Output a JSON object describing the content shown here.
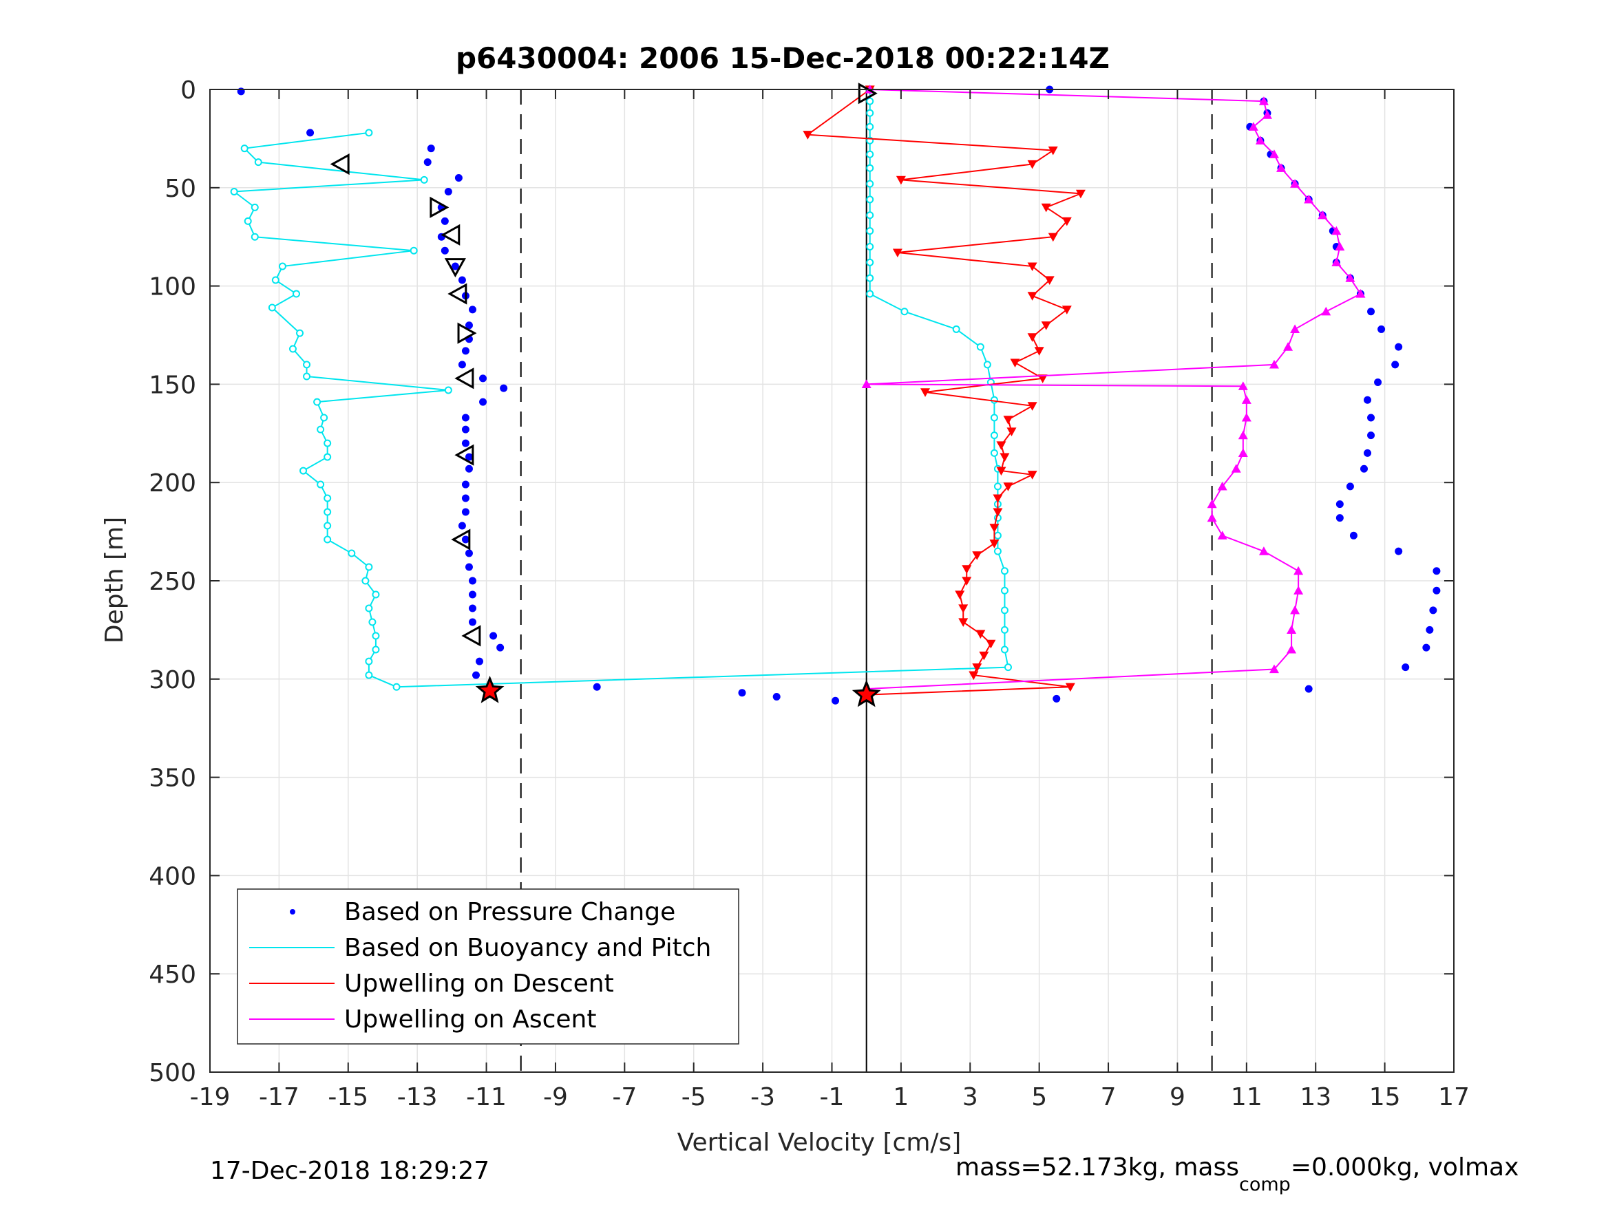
{
  "chart_data": {
    "type": "scatter",
    "title": "p6430004:  2006 15-Dec-2018 00:22:14Z",
    "xlabel": "Vertical Velocity [cm/s]",
    "ylabel": "Depth [m]",
    "xlim": [
      -19,
      17
    ],
    "ylim": [
      0,
      500
    ],
    "y_reversed": true,
    "grid": true,
    "x_ticks": [
      -19,
      -17,
      -15,
      -13,
      -11,
      -9,
      -7,
      -5,
      -3,
      -1,
      1,
      3,
      5,
      7,
      9,
      11,
      13,
      15,
      17
    ],
    "y_ticks": [
      0,
      50,
      100,
      150,
      200,
      250,
      300,
      350,
      400,
      450,
      500
    ],
    "reference_lines": [
      {
        "x": -10,
        "style": "dashed"
      },
      {
        "x": 10,
        "style": "dashed"
      },
      {
        "x": 0,
        "style": "solid"
      }
    ],
    "legend_position": "bottom-left",
    "footer_left": "17-Dec-2018 18:29:27",
    "footer_right": "mass=52.173kg, mass",
    "footer_right_sub": "comp",
    "footer_right_tail": "=0.000kg, volmax",
    "series": [
      {
        "name": "Based on Pressure Change",
        "color": "#0000ff",
        "style": "dots",
        "points": [
          [
            -18.1,
            1
          ],
          [
            -16.1,
            22
          ],
          [
            -12.6,
            30
          ],
          [
            -12.7,
            37
          ],
          [
            -11.8,
            45
          ],
          [
            -12.1,
            52
          ],
          [
            -12.3,
            60
          ],
          [
            -12.2,
            67
          ],
          [
            -12.3,
            75
          ],
          [
            -12.2,
            82
          ],
          [
            -11.9,
            90
          ],
          [
            -11.7,
            97
          ],
          [
            -11.6,
            105
          ],
          [
            -11.4,
            112
          ],
          [
            -11.5,
            120
          ],
          [
            -11.5,
            127
          ],
          [
            -11.6,
            133
          ],
          [
            -11.7,
            140
          ],
          [
            -11.1,
            147
          ],
          [
            -10.5,
            152
          ],
          [
            -11.1,
            159
          ],
          [
            -11.6,
            167
          ],
          [
            -11.6,
            173
          ],
          [
            -11.6,
            180
          ],
          [
            -11.5,
            187
          ],
          [
            -11.5,
            193
          ],
          [
            -11.6,
            201
          ],
          [
            -11.6,
            208
          ],
          [
            -11.6,
            215
          ],
          [
            -11.7,
            222
          ],
          [
            -11.6,
            229
          ],
          [
            -11.5,
            236
          ],
          [
            -11.5,
            243
          ],
          [
            -11.4,
            250
          ],
          [
            -11.4,
            257
          ],
          [
            -11.4,
            264
          ],
          [
            -11.4,
            271
          ],
          [
            -10.8,
            278
          ],
          [
            -10.6,
            284
          ],
          [
            -11.2,
            291
          ],
          [
            -11.3,
            298
          ],
          [
            -7.8,
            304
          ],
          [
            -3.6,
            307
          ],
          [
            -2.6,
            309
          ],
          [
            -0.9,
            311
          ],
          [
            5.5,
            310
          ],
          [
            12.8,
            305
          ],
          [
            15.6,
            294
          ],
          [
            16.2,
            284
          ],
          [
            16.3,
            275
          ],
          [
            16.4,
            265
          ],
          [
            16.5,
            255
          ],
          [
            16.5,
            245
          ],
          [
            15.4,
            235
          ],
          [
            14.1,
            227
          ],
          [
            13.7,
            218
          ],
          [
            13.7,
            211
          ],
          [
            14.0,
            202
          ],
          [
            14.4,
            193
          ],
          [
            14.5,
            185
          ],
          [
            14.6,
            176
          ],
          [
            14.6,
            167
          ],
          [
            14.5,
            158
          ],
          [
            14.8,
            149
          ],
          [
            15.3,
            140
          ],
          [
            15.4,
            131
          ],
          [
            14.9,
            122
          ],
          [
            14.6,
            113
          ],
          [
            14.3,
            104
          ],
          [
            14.0,
            96
          ],
          [
            13.6,
            88
          ],
          [
            13.6,
            80
          ],
          [
            13.5,
            72
          ],
          [
            13.2,
            64
          ],
          [
            12.8,
            56
          ],
          [
            12.4,
            48
          ],
          [
            12.0,
            40
          ],
          [
            11.7,
            33
          ],
          [
            11.4,
            26
          ],
          [
            11.1,
            19
          ],
          [
            11.6,
            12
          ],
          [
            11.5,
            6
          ],
          [
            5.3,
            0
          ]
        ]
      },
      {
        "name": "Based on Buoyancy and Pitch",
        "color": "#00e5ee",
        "style": "line-circles",
        "points": [
          [
            -14.4,
            22
          ],
          [
            -18.0,
            30
          ],
          [
            -17.6,
            37
          ],
          [
            -12.8,
            46
          ],
          [
            -18.3,
            52
          ],
          [
            -17.7,
            60
          ],
          [
            -17.9,
            67
          ],
          [
            -17.7,
            75
          ],
          [
            -13.1,
            82
          ],
          [
            -16.9,
            90
          ],
          [
            -17.1,
            97
          ],
          [
            -16.5,
            104
          ],
          [
            -17.2,
            111
          ],
          [
            -16.4,
            124
          ],
          [
            -16.6,
            132
          ],
          [
            -16.2,
            140
          ],
          [
            -16.2,
            146
          ],
          [
            -12.1,
            153
          ],
          [
            -15.9,
            159
          ],
          [
            -15.7,
            167
          ],
          [
            -15.8,
            173
          ],
          [
            -15.6,
            180
          ],
          [
            -15.6,
            187
          ],
          [
            -16.3,
            194
          ],
          [
            -15.8,
            201
          ],
          [
            -15.6,
            208
          ],
          [
            -15.6,
            215
          ],
          [
            -15.6,
            222
          ],
          [
            -15.6,
            229
          ],
          [
            -14.9,
            236
          ],
          [
            -14.4,
            243
          ],
          [
            -14.5,
            250
          ],
          [
            -14.2,
            257
          ],
          [
            -14.4,
            264
          ],
          [
            -14.3,
            271
          ],
          [
            -14.2,
            278
          ],
          [
            -14.2,
            285
          ],
          [
            -14.4,
            291
          ],
          [
            -14.4,
            298
          ],
          [
            -13.6,
            304
          ],
          [
            4.1,
            294
          ],
          [
            4.0,
            285
          ],
          [
            4.0,
            275
          ],
          [
            4.0,
            265
          ],
          [
            4.0,
            255
          ],
          [
            4.0,
            245
          ],
          [
            3.8,
            235
          ],
          [
            3.8,
            227
          ],
          [
            3.8,
            218
          ],
          [
            3.8,
            211
          ],
          [
            3.8,
            202
          ],
          [
            3.8,
            193
          ],
          [
            3.7,
            185
          ],
          [
            3.7,
            176
          ],
          [
            3.7,
            167
          ],
          [
            3.7,
            158
          ],
          [
            3.6,
            149
          ],
          [
            3.5,
            140
          ],
          [
            3.3,
            131
          ],
          [
            2.6,
            122
          ],
          [
            1.1,
            113
          ],
          [
            0.1,
            104
          ],
          [
            0.1,
            96
          ],
          [
            0.1,
            88
          ],
          [
            0.1,
            80
          ],
          [
            0.1,
            72
          ],
          [
            0.1,
            64
          ],
          [
            0.1,
            56
          ],
          [
            0.1,
            48
          ],
          [
            0.1,
            40
          ],
          [
            0.1,
            33
          ],
          [
            0.1,
            26
          ],
          [
            0.1,
            19
          ],
          [
            0.1,
            12
          ],
          [
            0.1,
            6
          ],
          [
            0.1,
            0
          ]
        ]
      },
      {
        "name": "Upwelling on Descent",
        "color": "#ff0000",
        "style": "line-down-triangles",
        "points": [
          [
            0.1,
            0
          ],
          [
            -1.7,
            23
          ],
          [
            5.4,
            31
          ],
          [
            4.8,
            38
          ],
          [
            1.0,
            46
          ],
          [
            6.2,
            53
          ],
          [
            5.2,
            60
          ],
          [
            5.8,
            67
          ],
          [
            5.4,
            75
          ],
          [
            0.9,
            83
          ],
          [
            4.8,
            90
          ],
          [
            5.3,
            97
          ],
          [
            4.8,
            105
          ],
          [
            5.8,
            112
          ],
          [
            5.2,
            120
          ],
          [
            4.8,
            126
          ],
          [
            5.0,
            133
          ],
          [
            4.3,
            139
          ],
          [
            5.1,
            147
          ],
          [
            1.7,
            154
          ],
          [
            4.8,
            161
          ],
          [
            4.1,
            168
          ],
          [
            4.2,
            174
          ],
          [
            3.9,
            181
          ],
          [
            4.0,
            187
          ],
          [
            3.9,
            194
          ],
          [
            4.8,
            196
          ],
          [
            4.1,
            202
          ],
          [
            3.8,
            208
          ],
          [
            3.8,
            215
          ],
          [
            3.7,
            223
          ],
          [
            3.7,
            231
          ],
          [
            3.2,
            237
          ],
          [
            2.9,
            244
          ],
          [
            2.9,
            250
          ],
          [
            2.7,
            257
          ],
          [
            2.8,
            264
          ],
          [
            2.8,
            271
          ],
          [
            3.3,
            277
          ],
          [
            3.6,
            282
          ],
          [
            3.4,
            288
          ],
          [
            3.2,
            294
          ],
          [
            3.1,
            298
          ],
          [
            5.9,
            304
          ],
          [
            0.0,
            308
          ]
        ]
      },
      {
        "name": "Upwelling on Ascent",
        "color": "#ff00ff",
        "style": "line-up-triangles",
        "points": [
          [
            0.0,
            305
          ],
          [
            11.8,
            295
          ],
          [
            12.3,
            285
          ],
          [
            12.3,
            275
          ],
          [
            12.4,
            265
          ],
          [
            12.5,
            255
          ],
          [
            12.5,
            245
          ],
          [
            11.5,
            235
          ],
          [
            10.3,
            227
          ],
          [
            10.0,
            218
          ],
          [
            10.0,
            211
          ],
          [
            10.3,
            202
          ],
          [
            10.7,
            193
          ],
          [
            10.9,
            185
          ],
          [
            10.9,
            176
          ],
          [
            11.0,
            167
          ],
          [
            11.0,
            158
          ],
          [
            10.9,
            151
          ],
          [
            0.0,
            150
          ],
          [
            11.8,
            140
          ],
          [
            12.2,
            131
          ],
          [
            12.4,
            122
          ],
          [
            13.3,
            113
          ],
          [
            14.3,
            104
          ],
          [
            14.0,
            96
          ],
          [
            13.6,
            88
          ],
          [
            13.7,
            80
          ],
          [
            13.6,
            72
          ],
          [
            13.2,
            64
          ],
          [
            12.8,
            56
          ],
          [
            12.4,
            48
          ],
          [
            12.0,
            40
          ],
          [
            11.8,
            33
          ],
          [
            11.4,
            26
          ],
          [
            11.2,
            19
          ],
          [
            11.6,
            13
          ],
          [
            11.5,
            6
          ],
          [
            0.1,
            0
          ]
        ]
      },
      {
        "name": "",
        "color": "#000000",
        "style": "triangles",
        "points": [
          [
            -15.2,
            38,
            "left"
          ],
          [
            -12.4,
            60,
            "right"
          ],
          [
            -12.0,
            74,
            "left"
          ],
          [
            -11.9,
            90,
            "down"
          ],
          [
            -11.8,
            104,
            "left"
          ],
          [
            -11.6,
            124,
            "right"
          ],
          [
            -11.6,
            147,
            "left"
          ],
          [
            -11.6,
            186,
            "left"
          ],
          [
            -11.7,
            229,
            "left"
          ],
          [
            -11.4,
            278,
            "left"
          ],
          [
            0.0,
            2,
            "right"
          ]
        ]
      },
      {
        "name": "",
        "color": "#ff0000",
        "style": "stars",
        "points": [
          [
            -10.9,
            306
          ],
          [
            0.0,
            308
          ]
        ]
      }
    ]
  }
}
